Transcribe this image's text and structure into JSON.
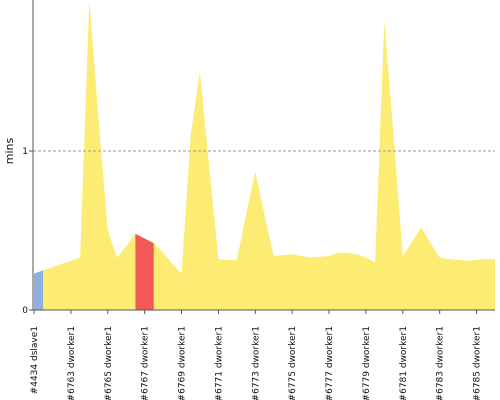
{
  "chart_data": {
    "type": "area",
    "ylabel": "mins",
    "ylim": [
      0,
      1.95
    ],
    "yticks": [
      0,
      1
    ],
    "grid": "dashed line at y=1",
    "legend": "none",
    "colors": {
      "normal": "#fcec74",
      "blue": "#8fb0dc",
      "red": "#f25a58",
      "axis": "#555555",
      "grid": "#999999"
    },
    "x": [
      0,
      1,
      2,
      3,
      4,
      5,
      6,
      7,
      8,
      9,
      10,
      11,
      12,
      13,
      14,
      15,
      16,
      17,
      18,
      19,
      20,
      21,
      22,
      23,
      24,
      25,
      26,
      27,
      28,
      29,
      30,
      31,
      32,
      33,
      34,
      35,
      36,
      37,
      38,
      39,
      40,
      41,
      42,
      43,
      44,
      45,
      46,
      47,
      48,
      49,
      50
    ],
    "tick_labels": [
      "#4434 dslave1",
      "#6763 dworker1",
      "#6765 dworker1",
      "#6767 dworker1",
      "#6769 dworker1",
      "#6771 dworker1",
      "#6773 dworker1",
      "#6775 dworker1",
      "#6777 dworker1",
      "#6779 dworker1",
      "#6781 dworker1",
      "#6783 dworker1",
      "#6785 dworker1"
    ],
    "tick_positions": [
      0,
      4,
      8,
      12,
      16,
      20,
      24,
      28,
      32,
      36,
      40,
      44,
      48
    ],
    "values": [
      0.23,
      0.25,
      0.27,
      0.29,
      0.31,
      0.33,
      1.95,
      1.2,
      0.5,
      0.33,
      0.4,
      0.48,
      0.45,
      0.42,
      0.36,
      0.29,
      0.23,
      1.1,
      1.5,
      0.9,
      0.32,
      0.315,
      0.315,
      0.6,
      0.87,
      0.6,
      0.34,
      0.345,
      0.35,
      0.34,
      0.33,
      0.335,
      0.34,
      0.36,
      0.36,
      0.35,
      0.33,
      0.3,
      1.82,
      1.1,
      0.34,
      0.43,
      0.52,
      0.42,
      0.33,
      0.32,
      0.315,
      0.31,
      0.315,
      0.32,
      0.32
    ],
    "segments": [
      {
        "from": 0,
        "to": 1,
        "status": "blue"
      },
      {
        "from": 1,
        "to": 11,
        "status": "normal"
      },
      {
        "from": 11,
        "to": 13,
        "status": "red"
      },
      {
        "from": 13,
        "to": 50,
        "status": "normal"
      }
    ]
  }
}
